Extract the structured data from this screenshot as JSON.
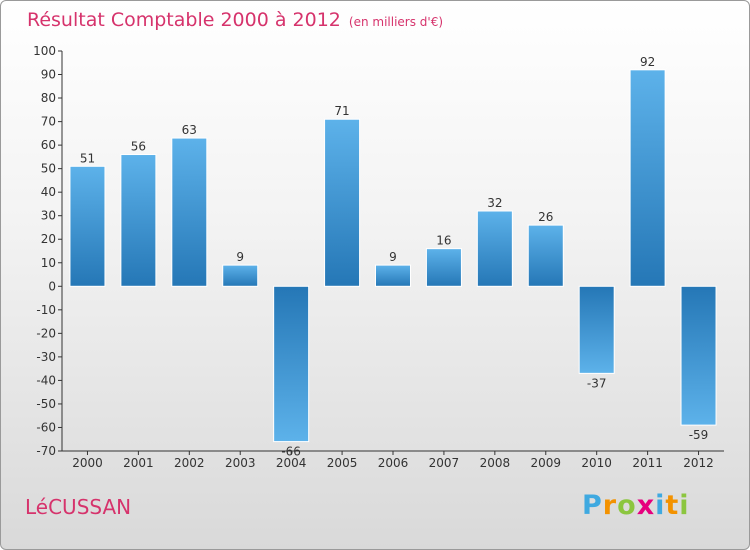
{
  "header": {
    "title": "Résultat Comptable 2000 à 2012",
    "subtitle": "(en milliers d'€)"
  },
  "footer": {
    "commune": "LéCUSSAN",
    "logo_letters": [
      {
        "ch": "P",
        "color": "#3fa9e0"
      },
      {
        "ch": "r",
        "color": "#f39200"
      },
      {
        "ch": "o",
        "color": "#8cc63f"
      },
      {
        "ch": "x",
        "color": "#e6007e"
      },
      {
        "ch": "i",
        "color": "#3fa9e0"
      },
      {
        "ch": "t",
        "color": "#f39200"
      },
      {
        "ch": "i",
        "color": "#8cc63f"
      }
    ]
  },
  "chart_data": {
    "type": "bar",
    "title": "Résultat Comptable 2000 à 2012",
    "categories": [
      "2000",
      "2001",
      "2002",
      "2003",
      "2004",
      "2005",
      "2006",
      "2007",
      "2008",
      "2009",
      "2010",
      "2011",
      "2012"
    ],
    "values": [
      51,
      56,
      63,
      9,
      -66,
      71,
      9,
      16,
      32,
      26,
      -37,
      92,
      -59
    ],
    "ylim": [
      -70,
      100
    ],
    "yticks": [
      100,
      90,
      80,
      70,
      60,
      50,
      40,
      30,
      20,
      10,
      0,
      -10,
      -20,
      -30,
      -40,
      -50,
      -60,
      -70
    ],
    "xlabel": "",
    "ylabel": "",
    "grid": false,
    "bar_color": "#3d97d8"
  }
}
